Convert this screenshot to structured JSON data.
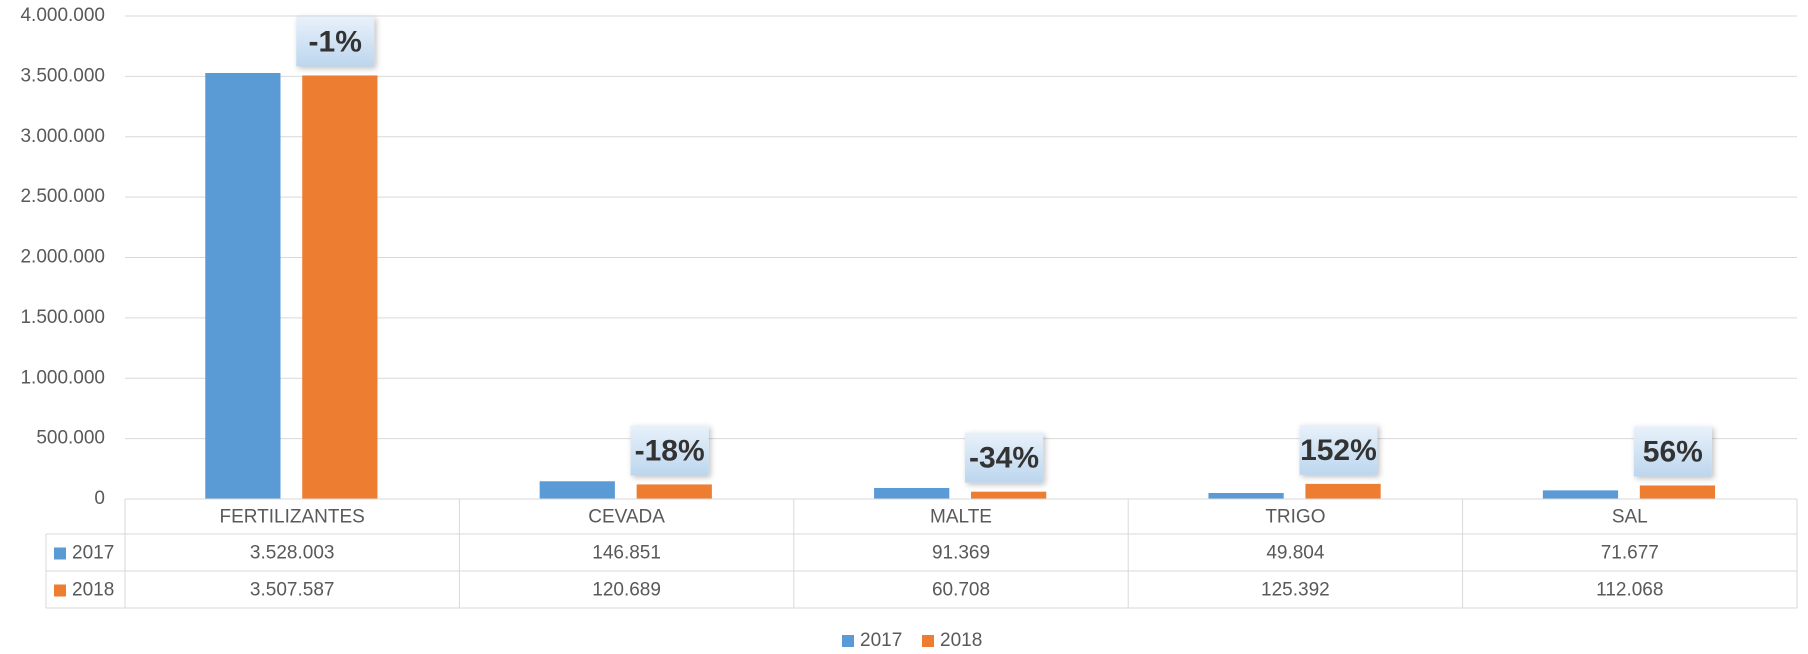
{
  "chart_data": {
    "type": "bar",
    "categories": [
      "FERTILIZANTES",
      "CEVADA",
      "MALTE",
      "TRIGO",
      "SAL"
    ],
    "series": [
      {
        "name": "2017",
        "color": "#5b9bd5",
        "values": [
          3528003,
          146851,
          91369,
          49804,
          71677
        ],
        "value_labels": [
          "3.528.003",
          "146.851",
          "91.369",
          "49.804",
          "71.677"
        ]
      },
      {
        "name": "2018",
        "color": "#ed7d31",
        "values": [
          3507587,
          120689,
          60708,
          125392,
          112068
        ],
        "value_labels": [
          "3.507.587",
          "120.689",
          "60.708",
          "125.392",
          "112.068"
        ]
      }
    ],
    "annotations": [
      "-1%",
      "-18%",
      "-34%",
      "152%",
      "56%"
    ],
    "ylim": [
      0,
      4000000
    ],
    "yticks": [
      0,
      {
        "value": 500000,
        "label": "500.000"
      },
      {
        "value": 1000000,
        "label": "1.000.000"
      },
      {
        "value": 1500000,
        "label": "1.500.000"
      },
      {
        "value": 2000000,
        "label": "2.000.000"
      },
      {
        "value": 2500000,
        "label": "2.500.000"
      },
      {
        "value": 3000000,
        "label": "3.000.000"
      },
      {
        "value": 3500000,
        "label": "3.500.000"
      },
      {
        "value": 4000000,
        "label": "4.000.000"
      }
    ],
    "grid": true,
    "legend": "bottom"
  }
}
